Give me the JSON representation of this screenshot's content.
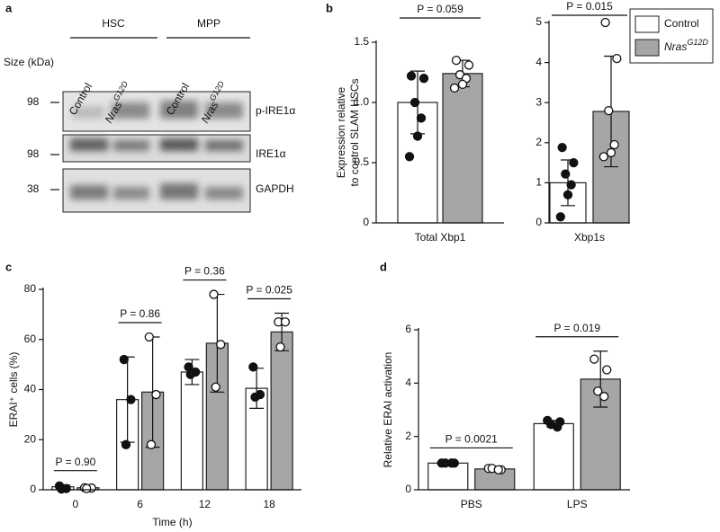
{
  "blot": {
    "label": "a",
    "groups": [
      "HSC",
      "MPP"
    ],
    "lanes": [
      {
        "text": "Control"
      },
      {
        "text": "Nras",
        "sup": "G12D"
      },
      {
        "text": "Control"
      },
      {
        "text": "Nras",
        "sup": "G12D"
      }
    ],
    "size_label": "Size (kDa)",
    "rows": [
      {
        "name": "p-IRE1α",
        "size": 98
      },
      {
        "name": "IRE1α",
        "size": 98
      },
      {
        "name": "GAPDH",
        "size": 38
      }
    ]
  },
  "legend": [
    {
      "name": "Control",
      "color": "#ffffff"
    },
    {
      "name": "Nras",
      "sup": "G12D",
      "color": "#a6a6a6"
    }
  ],
  "chart_data": [
    {
      "type": "bar",
      "label": "b",
      "ylabel": [
        "Expression relative",
        "to control SLAM HSCs"
      ],
      "categories": [
        "Total Xbp1"
      ],
      "p_values": [
        "P = 0.059"
      ],
      "ylim": [
        0,
        1.5
      ],
      "yticks": [
        0,
        0.5,
        {
          "value": 1,
          "label": "1.0"
        },
        1.5
      ],
      "series": [
        {
          "values": [
            1.0
          ],
          "errors": [
            0.26
          ],
          "points": [
            [
              1.22,
              1.2,
              1.0,
              0.87,
              0.72,
              0.55
            ]
          ]
        },
        {
          "values": [
            1.24
          ],
          "errors": [
            0.11
          ],
          "points": [
            [
              1.35,
              1.31,
              1.23,
              1.2,
              1.15,
              1.12
            ]
          ]
        }
      ]
    },
    {
      "type": "bar",
      "categories": [
        "Xbp1s"
      ],
      "p_values": [
        "P = 0.015"
      ],
      "ylim": [
        0,
        5
      ],
      "yticks": [
        0,
        1,
        2,
        3,
        4,
        5
      ],
      "series": [
        {
          "values": [
            1.0
          ],
          "errors": [
            0.57
          ],
          "points": [
            [
              1.88,
              1.5,
              1.22,
              0.95,
              0.7,
              0.15
            ]
          ]
        },
        {
          "values": [
            2.78
          ],
          "errors": [
            1.38
          ],
          "points": [
            [
              5.0,
              4.1,
              2.8,
              1.95,
              1.75,
              1.65
            ]
          ]
        }
      ]
    },
    {
      "type": "bar",
      "label": "c",
      "ylabel": [
        "ERAI⁺ cells (%)"
      ],
      "xlabel": "Time (h)",
      "categories": [
        "0",
        "6",
        "12",
        "18"
      ],
      "p_values": [
        "P = 0.90",
        "P = 0.86",
        "P = 0.36",
        "P = 0.025"
      ],
      "ylim": [
        0,
        80
      ],
      "yticks": [
        0,
        20,
        40,
        60,
        80
      ],
      "series": [
        {
          "values": [
            1.2,
            36,
            47,
            40.5
          ],
          "errors": [
            0.7,
            17,
            5,
            8
          ],
          "points": [
            [
              1.5,
              0.5,
              0.3
            ],
            [
              52,
              36,
              18
            ],
            [
              49,
              47,
              46
            ],
            [
              49,
              38,
              37
            ]
          ]
        },
        {
          "values": [
            0.8,
            39,
            58.5,
            63
          ],
          "errors": [
            0.4,
            22,
            19.5,
            7.5
          ],
          "points": [
            [
              0.8,
              0.7,
              0.5
            ],
            [
              61,
              38,
              18
            ],
            [
              78,
              58,
              41
            ],
            [
              67,
              67,
              57
            ]
          ]
        }
      ]
    },
    {
      "type": "bar",
      "label": "d",
      "ylabel": [
        "Relative ERAI activation"
      ],
      "categories": [
        "PBS",
        "LPS"
      ],
      "p_values": [
        "P = 0.0021",
        "P = 0.019"
      ],
      "ylim": [
        0,
        6
      ],
      "yticks": [
        0,
        2,
        4,
        6
      ],
      "series": [
        {
          "values": [
            1.0,
            2.48
          ],
          "errors": [
            0.03,
            0.12
          ],
          "points": [
            [
              1,
              1,
              1,
              1
            ],
            [
              2.6,
              2.55,
              2.45,
              2.35
            ]
          ]
        },
        {
          "values": [
            0.78,
            4.15
          ],
          "errors": [
            0.06,
            1.05
          ],
          "points": [
            [
              0.8,
              0.75,
              0.8,
              0.75
            ],
            [
              4.9,
              4.5,
              3.7,
              3.5
            ]
          ]
        }
      ]
    }
  ]
}
